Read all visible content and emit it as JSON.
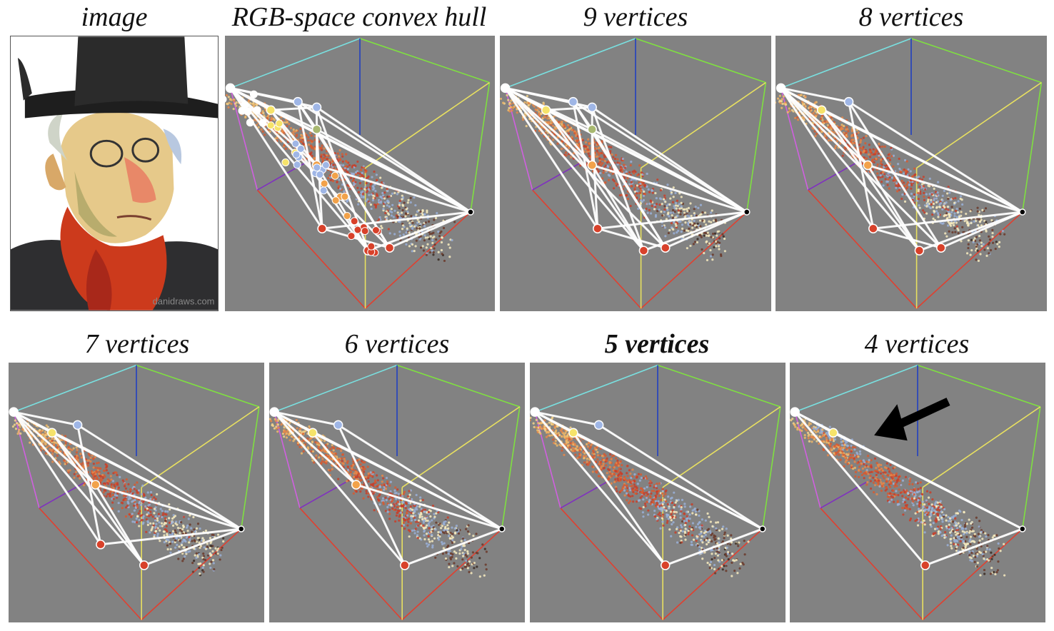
{
  "figure": {
    "titles": [
      {
        "text": "image",
        "bold": false
      },
      {
        "text": "RGB-space convex hull",
        "bold": false
      },
      {
        "text": "9 vertices",
        "bold": false
      },
      {
        "text": "8 vertices",
        "bold": false
      },
      {
        "text": "7 vertices",
        "bold": false
      },
      {
        "text": "6 vertices",
        "bold": false
      },
      {
        "text": "5 vertices",
        "bold": true
      },
      {
        "text": "4 vertices",
        "bold": false
      }
    ],
    "watermark": "danidraws.com",
    "arrow_annotation_panel": "4 vertices"
  },
  "colors": {
    "panel_background": "#828282",
    "hull_edges": "#ffffff",
    "cube_edge_top_cyan": "#79e0e0",
    "cube_edge_green": "#7fe040",
    "cube_edge_magenta": "#d060e0",
    "cube_edge_red": "#e04030",
    "cube_edge_blue": "#2040c0",
    "cube_edge_yellow": "#e8e060",
    "vertex_white": "#ffffff",
    "vertex_yellow": "#f6e36a",
    "vertex_blue": "#9fb6e6",
    "vertex_orange": "#f2a24a",
    "vertex_red": "#d8412a",
    "vertex_black": "#000000"
  },
  "hull_panels": [
    {
      "name": "full-hull",
      "vertex_count": null,
      "vertex_colors": [
        "white",
        "yellow",
        "blue",
        "orange",
        "red",
        "black"
      ]
    },
    {
      "name": "hull-9",
      "vertex_count": 9,
      "vertex_colors": [
        "white",
        "yellow",
        "blue",
        "blue",
        "green",
        "orange",
        "red",
        "red",
        "black"
      ]
    },
    {
      "name": "hull-8",
      "vertex_count": 8,
      "vertex_colors": [
        "white",
        "yellow",
        "blue",
        "orange",
        "red",
        "red",
        "red",
        "black"
      ]
    },
    {
      "name": "hull-7",
      "vertex_count": 7,
      "vertex_colors": [
        "white",
        "yellow",
        "blue",
        "orange",
        "red",
        "red",
        "black"
      ]
    },
    {
      "name": "hull-6",
      "vertex_count": 6,
      "vertex_colors": [
        "white",
        "yellow",
        "blue",
        "orange",
        "red",
        "black"
      ]
    },
    {
      "name": "hull-5",
      "vertex_count": 5,
      "vertex_colors": [
        "white",
        "yellow",
        "blue",
        "red",
        "black"
      ]
    },
    {
      "name": "hull-4",
      "vertex_count": 4,
      "vertex_colors": [
        "white",
        "yellow",
        "red",
        "black"
      ]
    }
  ]
}
